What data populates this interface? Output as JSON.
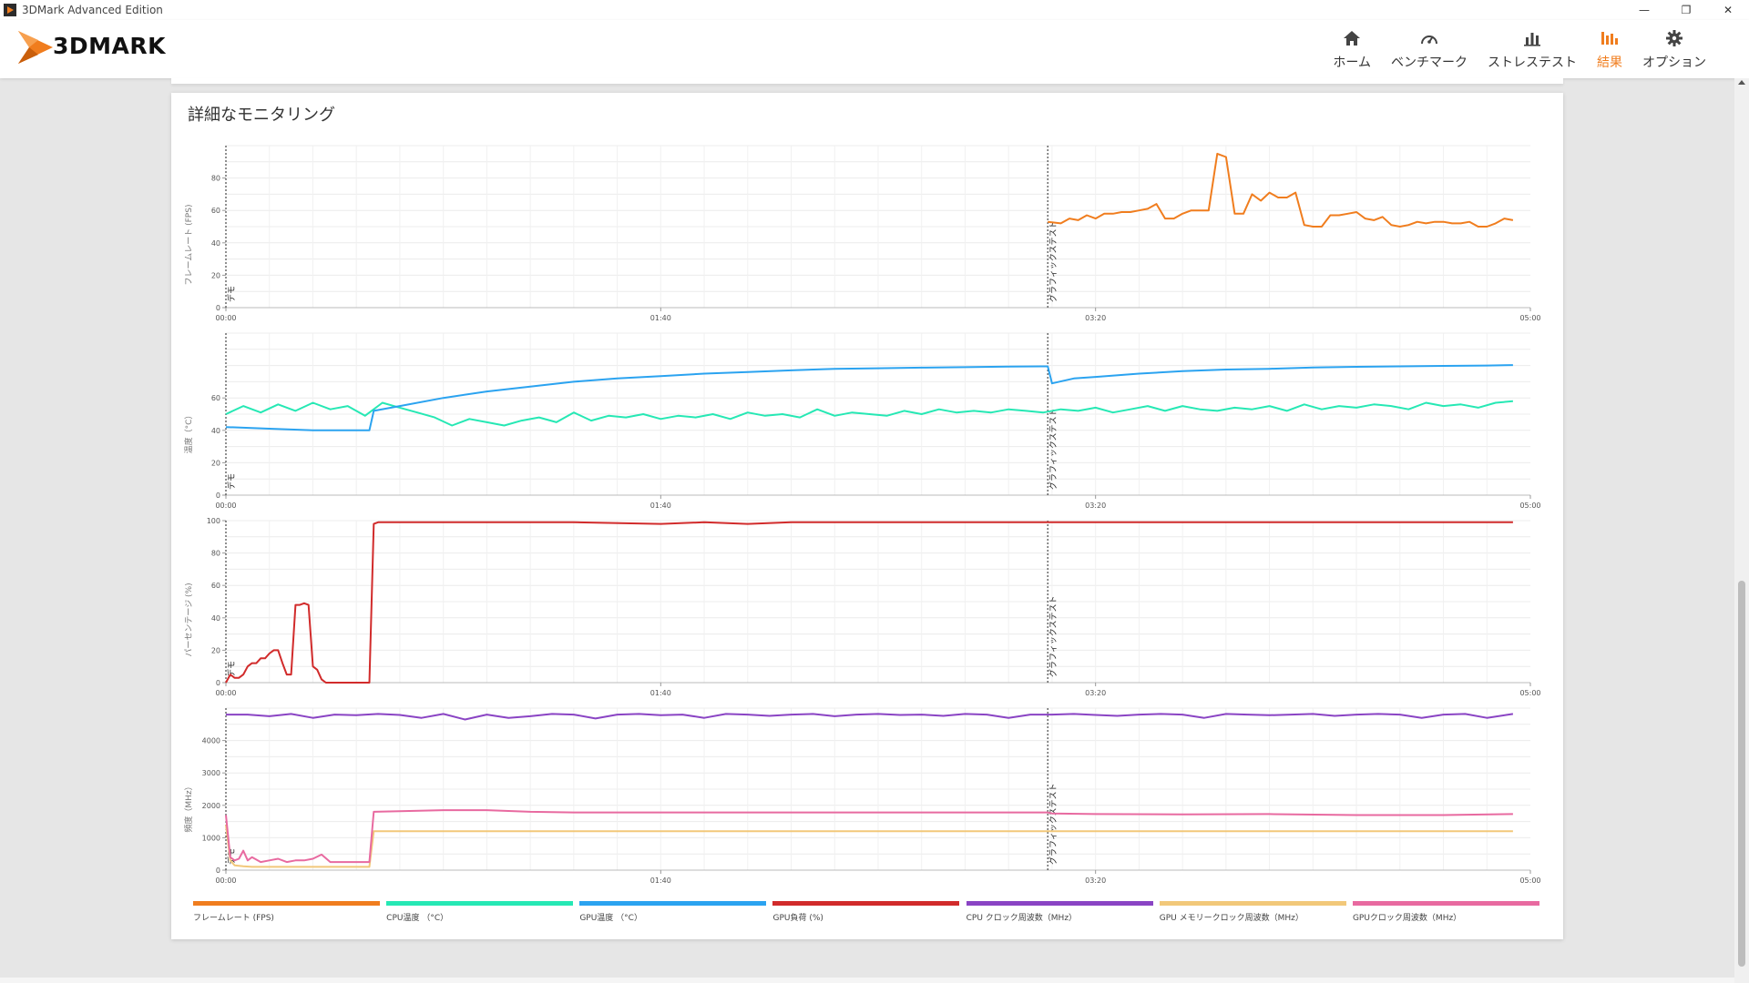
{
  "window": {
    "title": "3DMark Advanced Edition",
    "minimize": "—",
    "restore": "❐",
    "close": "✕"
  },
  "brand": {
    "logo_text": "3DMARK",
    "accent": "#f07d1e"
  },
  "nav": [
    {
      "id": "home",
      "label": "ホーム",
      "icon": "home-icon",
      "active": false
    },
    {
      "id": "benchmark",
      "label": "ベンチマーク",
      "icon": "gauge-icon",
      "active": false
    },
    {
      "id": "stress",
      "label": "ストレステスト",
      "icon": "bar-chart-icon",
      "active": false
    },
    {
      "id": "results",
      "label": "結果",
      "icon": "results-icon",
      "active": true
    },
    {
      "id": "options",
      "label": "オプション",
      "icon": "gear-icon",
      "active": false
    }
  ],
  "card": {
    "title": "詳細なモニタリング"
  },
  "chart_data": [
    {
      "type": "line",
      "ylabel": "フレームレート (FPS)",
      "ylim": [
        0,
        100
      ],
      "yticks": [
        0,
        20,
        40,
        60,
        80
      ],
      "xlim": [
        0,
        300
      ],
      "xtick_labels": [
        "00:00",
        "01:40",
        "03:20",
        "05:00"
      ],
      "xticks": [
        0,
        100,
        200,
        300
      ],
      "grid": true,
      "markers": [
        {
          "x": 0,
          "label": "デモ"
        },
        {
          "x": 189,
          "label": "グラフィックステスト"
        }
      ],
      "series": [
        {
          "name": "フレームレート (FPS)",
          "color": "#f07d1e",
          "x": [
            189,
            192,
            194,
            196,
            198,
            200,
            202,
            204,
            206,
            208,
            210,
            212,
            214,
            216,
            218,
            220,
            222,
            224,
            226,
            228,
            230,
            232,
            234,
            236,
            238,
            240,
            242,
            244,
            246,
            248,
            250,
            252,
            254,
            256,
            258,
            260,
            262,
            264,
            266,
            268,
            270,
            272,
            274,
            276,
            278,
            280,
            282,
            284,
            286,
            288,
            290,
            292,
            294,
            296
          ],
          "values": [
            53,
            52,
            55,
            54,
            57,
            55,
            58,
            58,
            59,
            59,
            60,
            61,
            64,
            55,
            55,
            58,
            60,
            60,
            60,
            95,
            93,
            58,
            58,
            70,
            66,
            71,
            68,
            68,
            71,
            51,
            50,
            50,
            57,
            57,
            58,
            59,
            55,
            54,
            56,
            51,
            50,
            51,
            53,
            52,
            53,
            53,
            52,
            52,
            53,
            50,
            50,
            52,
            55,
            54
          ]
        }
      ]
    },
    {
      "type": "line",
      "ylabel": "温度（°C）",
      "ylim": [
        0,
        100
      ],
      "yticks": [
        0,
        20,
        40,
        60
      ],
      "xlim": [
        0,
        300
      ],
      "xtick_labels": [
        "00:00",
        "01:40",
        "03:20",
        "05:00"
      ],
      "xticks": [
        0,
        100,
        200,
        300
      ],
      "grid": true,
      "markers": [
        {
          "x": 0,
          "label": "デモ"
        },
        {
          "x": 189,
          "label": "グラフィックステスト"
        }
      ],
      "series": [
        {
          "name": "CPU温度 （°C）",
          "color": "#26e8b4",
          "x": [
            0,
            4,
            8,
            12,
            16,
            20,
            24,
            28,
            32,
            36,
            40,
            44,
            48,
            52,
            56,
            60,
            64,
            68,
            72,
            76,
            80,
            84,
            88,
            92,
            96,
            100,
            104,
            108,
            112,
            116,
            120,
            124,
            128,
            132,
            136,
            140,
            144,
            148,
            152,
            156,
            160,
            164,
            168,
            172,
            176,
            180,
            184,
            188,
            192,
            196,
            200,
            204,
            208,
            212,
            216,
            220,
            224,
            228,
            232,
            236,
            240,
            244,
            248,
            252,
            256,
            260,
            264,
            268,
            272,
            276,
            280,
            284,
            288,
            292,
            296
          ],
          "values": [
            50,
            55,
            51,
            56,
            52,
            57,
            53,
            55,
            49,
            57,
            54,
            51,
            48,
            43,
            47,
            45,
            43,
            46,
            48,
            45,
            51,
            46,
            49,
            48,
            50,
            47,
            49,
            48,
            50,
            47,
            51,
            49,
            50,
            48,
            53,
            49,
            51,
            50,
            49,
            52,
            50,
            53,
            51,
            52,
            51,
            53,
            52,
            51,
            53,
            52,
            54,
            51,
            53,
            55,
            52,
            55,
            53,
            52,
            54,
            53,
            55,
            52,
            56,
            53,
            55,
            54,
            56,
            55,
            53,
            57,
            55,
            56,
            54,
            57,
            58
          ]
        },
        {
          "name": "GPU温度 （°C）",
          "color": "#2ba3f0",
          "x": [
            0,
            10,
            20,
            33,
            34,
            40,
            50,
            60,
            70,
            80,
            90,
            100,
            110,
            120,
            130,
            140,
            150,
            160,
            170,
            180,
            189,
            190,
            195,
            200,
            210,
            220,
            230,
            240,
            250,
            260,
            270,
            280,
            290,
            296
          ],
          "values": [
            42,
            41,
            40,
            40,
            52,
            55,
            60,
            64,
            67,
            70,
            72,
            73.5,
            75,
            76,
            77,
            78,
            78.3,
            78.7,
            79,
            79.3,
            79.5,
            69,
            72,
            73,
            75,
            76.5,
            77.5,
            78,
            78.8,
            79.2,
            79.5,
            79.8,
            80,
            80.3
          ]
        }
      ]
    },
    {
      "type": "line",
      "ylabel": "パーセンテージ (%)",
      "ylim": [
        0,
        100
      ],
      "yticks": [
        0,
        20,
        40,
        60,
        80,
        100
      ],
      "xlim": [
        0,
        300
      ],
      "xtick_labels": [
        "00:00",
        "01:40",
        "03:20",
        "05:00"
      ],
      "xticks": [
        0,
        100,
        200,
        300
      ],
      "grid": true,
      "markers": [
        {
          "x": 0,
          "label": "デモ"
        },
        {
          "x": 189,
          "label": "グラフィックステスト"
        }
      ],
      "series": [
        {
          "name": "GPU負荷 (%)",
          "color": "#d12b2b",
          "x": [
            0,
            1,
            2,
            3,
            4,
            5,
            6,
            7,
            8,
            9,
            10,
            11,
            12,
            13,
            14,
            15,
            16,
            17,
            18,
            19,
            20,
            21,
            22,
            23,
            24,
            25,
            26,
            27,
            28,
            29,
            30,
            31,
            32,
            33,
            34,
            35,
            40,
            60,
            80,
            100,
            110,
            120,
            130,
            140,
            150,
            160,
            170,
            180,
            189,
            200,
            220,
            240,
            260,
            280,
            296
          ],
          "values": [
            0,
            5,
            3,
            3,
            5,
            10,
            12,
            12,
            15,
            15,
            18,
            20,
            20,
            12,
            5,
            5,
            48,
            48,
            49,
            48,
            10,
            8,
            2,
            0,
            0,
            0,
            0,
            0,
            0,
            0,
            0,
            0,
            0,
            0,
            98,
            99,
            99,
            99,
            99,
            98,
            99,
            98,
            99,
            99,
            99,
            99,
            99,
            99,
            99,
            99,
            99,
            99,
            99,
            99,
            99
          ]
        }
      ]
    },
    {
      "type": "line",
      "ylabel": "頻度（MHz）",
      "ylim": [
        0,
        5000
      ],
      "yticks": [
        0,
        1000,
        2000,
        3000,
        4000
      ],
      "xlim": [
        0,
        300
      ],
      "xtick_labels": [
        "00:00",
        "01:40",
        "03:20",
        "05:00"
      ],
      "xticks": [
        0,
        100,
        200,
        300
      ],
      "grid": true,
      "markers": [
        {
          "x": 0,
          "label": "デモ"
        },
        {
          "x": 189,
          "label": "グラフィックステスト"
        }
      ],
      "series": [
        {
          "name": "CPU クロック周波数（MHz）",
          "color": "#8a44c4",
          "x": [
            0,
            5,
            10,
            15,
            20,
            25,
            30,
            35,
            40,
            45,
            50,
            55,
            60,
            65,
            70,
            75,
            80,
            85,
            90,
            95,
            100,
            105,
            110,
            115,
            120,
            125,
            130,
            135,
            140,
            145,
            150,
            155,
            160,
            165,
            170,
            175,
            180,
            185,
            190,
            195,
            200,
            205,
            210,
            215,
            220,
            225,
            230,
            235,
            240,
            245,
            250,
            255,
            260,
            265,
            270,
            275,
            280,
            285,
            290,
            296
          ],
          "values": [
            4800,
            4800,
            4750,
            4820,
            4700,
            4800,
            4780,
            4820,
            4790,
            4700,
            4820,
            4650,
            4800,
            4700,
            4750,
            4820,
            4800,
            4680,
            4800,
            4820,
            4780,
            4800,
            4700,
            4820,
            4800,
            4760,
            4800,
            4820,
            4750,
            4800,
            4820,
            4790,
            4800,
            4760,
            4820,
            4800,
            4700,
            4800,
            4800,
            4820,
            4790,
            4760,
            4800,
            4820,
            4800,
            4700,
            4820,
            4800,
            4780,
            4800,
            4820,
            4760,
            4800,
            4820,
            4800,
            4700,
            4800,
            4820,
            4700,
            4820
          ]
        },
        {
          "name": "GPU メモリークロック周波数（MHz）",
          "color": "#f2c87a",
          "x": [
            0,
            1,
            2,
            4,
            6,
            10,
            20,
            33,
            34,
            50,
            100,
            150,
            189,
            190,
            200,
            250,
            296
          ],
          "values": [
            1400,
            300,
            150,
            120,
            100,
            100,
            100,
            100,
            1200,
            1200,
            1200,
            1200,
            1200,
            1200,
            1200,
            1200,
            1200
          ]
        },
        {
          "name": "GPUクロック周波数（MHz）",
          "color": "#e86aa0",
          "x": [
            0,
            1,
            2,
            3,
            4,
            5,
            6,
            8,
            10,
            12,
            14,
            16,
            18,
            20,
            22,
            24,
            26,
            28,
            30,
            33,
            34,
            40,
            50,
            60,
            70,
            80,
            90,
            100,
            120,
            140,
            160,
            180,
            189,
            190,
            200,
            220,
            240,
            260,
            280,
            296
          ],
          "values": [
            1700,
            400,
            300,
            350,
            600,
            300,
            400,
            250,
            300,
            350,
            250,
            300,
            300,
            350,
            480,
            250,
            250,
            250,
            250,
            250,
            1800,
            1820,
            1850,
            1850,
            1800,
            1780,
            1780,
            1780,
            1780,
            1780,
            1780,
            1780,
            1780,
            1750,
            1730,
            1720,
            1730,
            1700,
            1700,
            1730
          ]
        }
      ]
    }
  ],
  "legend": [
    {
      "label": "フレームレート (FPS)",
      "color": "#f07d1e"
    },
    {
      "label": "CPU温度 （°C）",
      "color": "#26e8b4"
    },
    {
      "label": "GPU温度 （°C）",
      "color": "#2ba3f0"
    },
    {
      "label": "GPU負荷 (%)",
      "color": "#d12b2b"
    },
    {
      "label": "CPU クロック周波数（MHz）",
      "color": "#8a44c4"
    },
    {
      "label": "GPU メモリークロック周波数（MHz）",
      "color": "#f2c87a"
    },
    {
      "label": "GPUクロック周波数（MHz）",
      "color": "#e86aa0"
    }
  ]
}
